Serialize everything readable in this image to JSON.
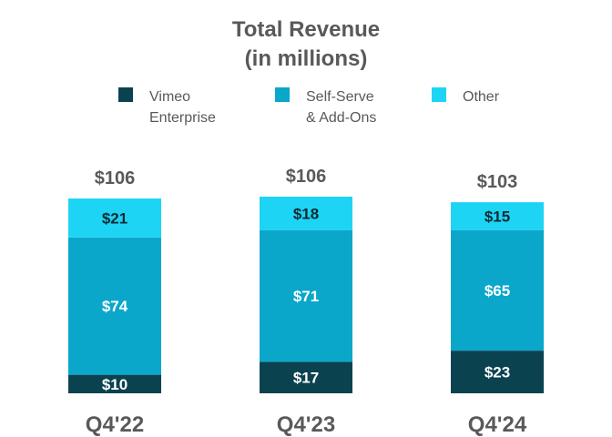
{
  "chart_data": {
    "type": "bar",
    "stacked": true,
    "title_line1": "Total Revenue",
    "title_line2": "(in millions)",
    "categories": [
      "Q4'22",
      "Q4'23",
      "Q4'24"
    ],
    "totals": [
      "$106",
      "$106",
      "$103"
    ],
    "series": [
      {
        "name_line1": "Vimeo",
        "name_line2": "Enterprise",
        "color": "#0b4250",
        "label_color": "#ffffff",
        "values": [
          10,
          17,
          23
        ],
        "labels": [
          "$10",
          "$17",
          "$23"
        ]
      },
      {
        "name_line1": "Self-Serve",
        "name_line2": "& Add-Ons",
        "color": "#0aa7cb",
        "label_color": "#ffffff",
        "values": [
          74,
          71,
          65
        ],
        "labels": [
          "$74",
          "$71",
          "$65"
        ]
      },
      {
        "name_line1": "Other",
        "name_line2": "",
        "color": "#1ed4f5",
        "label_color": "#0f2a33",
        "values": [
          21,
          18,
          15
        ],
        "labels": [
          "$21",
          "$18",
          "$15"
        ]
      }
    ],
    "ylim": [
      0,
      106
    ],
    "grid": false,
    "legend_position": "top"
  }
}
